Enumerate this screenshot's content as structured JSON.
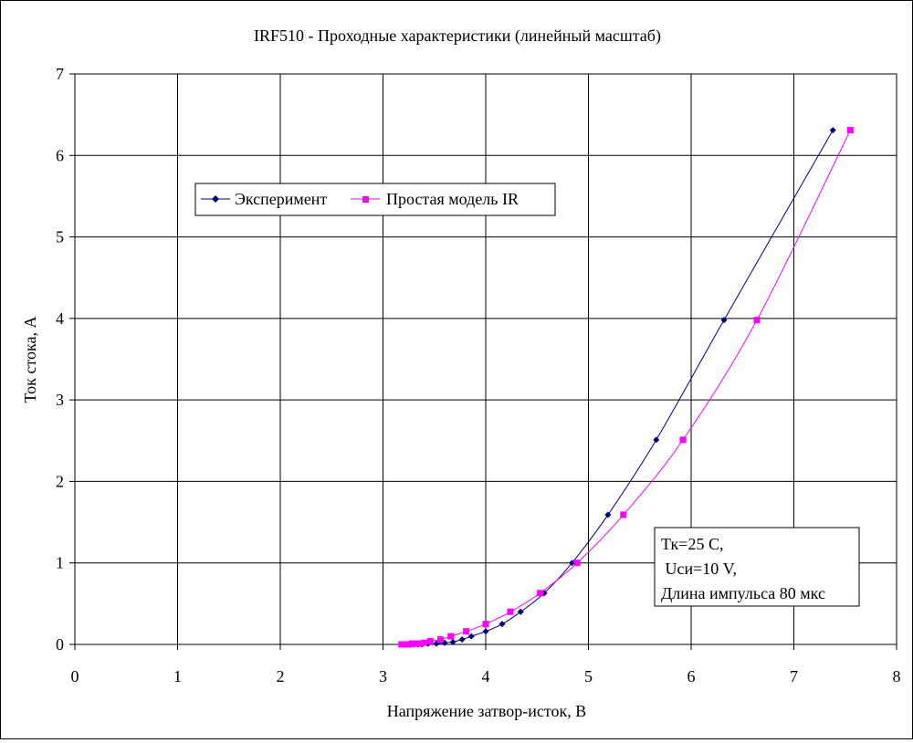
{
  "chart_data": {
    "type": "scatter",
    "title": "IRF510 - Проходные характеристики (линейный масштаб)",
    "xlabel": "Напряжение затвор-исток, В",
    "ylabel": "Ток стока, А",
    "xlim": [
      0,
      8
    ],
    "ylim": [
      0,
      7
    ],
    "xticks": [
      "0",
      "1",
      "2",
      "3",
      "4",
      "5",
      "6",
      "7",
      "8"
    ],
    "yticks": [
      "0",
      "1",
      "2",
      "3",
      "4",
      "5",
      "6",
      "7"
    ],
    "grid": true,
    "legend_position": "upper-left",
    "series": [
      {
        "name": "Эксперимент",
        "color": "#00007f",
        "marker": "diamond",
        "x": [
          3.18,
          3.21,
          3.24,
          3.27,
          3.3,
          3.34,
          3.38,
          3.44,
          3.52,
          3.6,
          3.68,
          3.77,
          3.86,
          4.0,
          4.16,
          4.34,
          4.57,
          4.84,
          5.19,
          5.66,
          6.32,
          7.38
        ],
        "y": [
          0.0,
          0.0,
          0.0,
          0.0,
          0.0,
          0.0,
          0.0,
          0.01,
          0.01,
          0.02,
          0.03,
          0.06,
          0.1,
          0.16,
          0.25,
          0.4,
          0.63,
          1.0,
          1.59,
          2.51,
          3.98,
          6.31
        ]
      },
      {
        "name": "Простая модель IR",
        "color": "#ff00ff",
        "marker": "square",
        "x": [
          3.18,
          3.2,
          3.22,
          3.25,
          3.28,
          3.31,
          3.35,
          3.4,
          3.46,
          3.56,
          3.66,
          3.81,
          4.0,
          4.24,
          4.53,
          4.89,
          5.34,
          5.92,
          6.64,
          7.55
        ],
        "y": [
          0.0,
          0.0,
          0.0,
          0.0,
          0.01,
          0.01,
          0.01,
          0.02,
          0.04,
          0.06,
          0.1,
          0.16,
          0.25,
          0.4,
          0.63,
          1.0,
          1.59,
          2.51,
          3.98,
          6.31
        ]
      }
    ],
    "annotation": {
      "lines": [
        "Тк=25 С,",
        " Uси=10 V,",
        "Длина импульса 80 мкс"
      ]
    }
  }
}
